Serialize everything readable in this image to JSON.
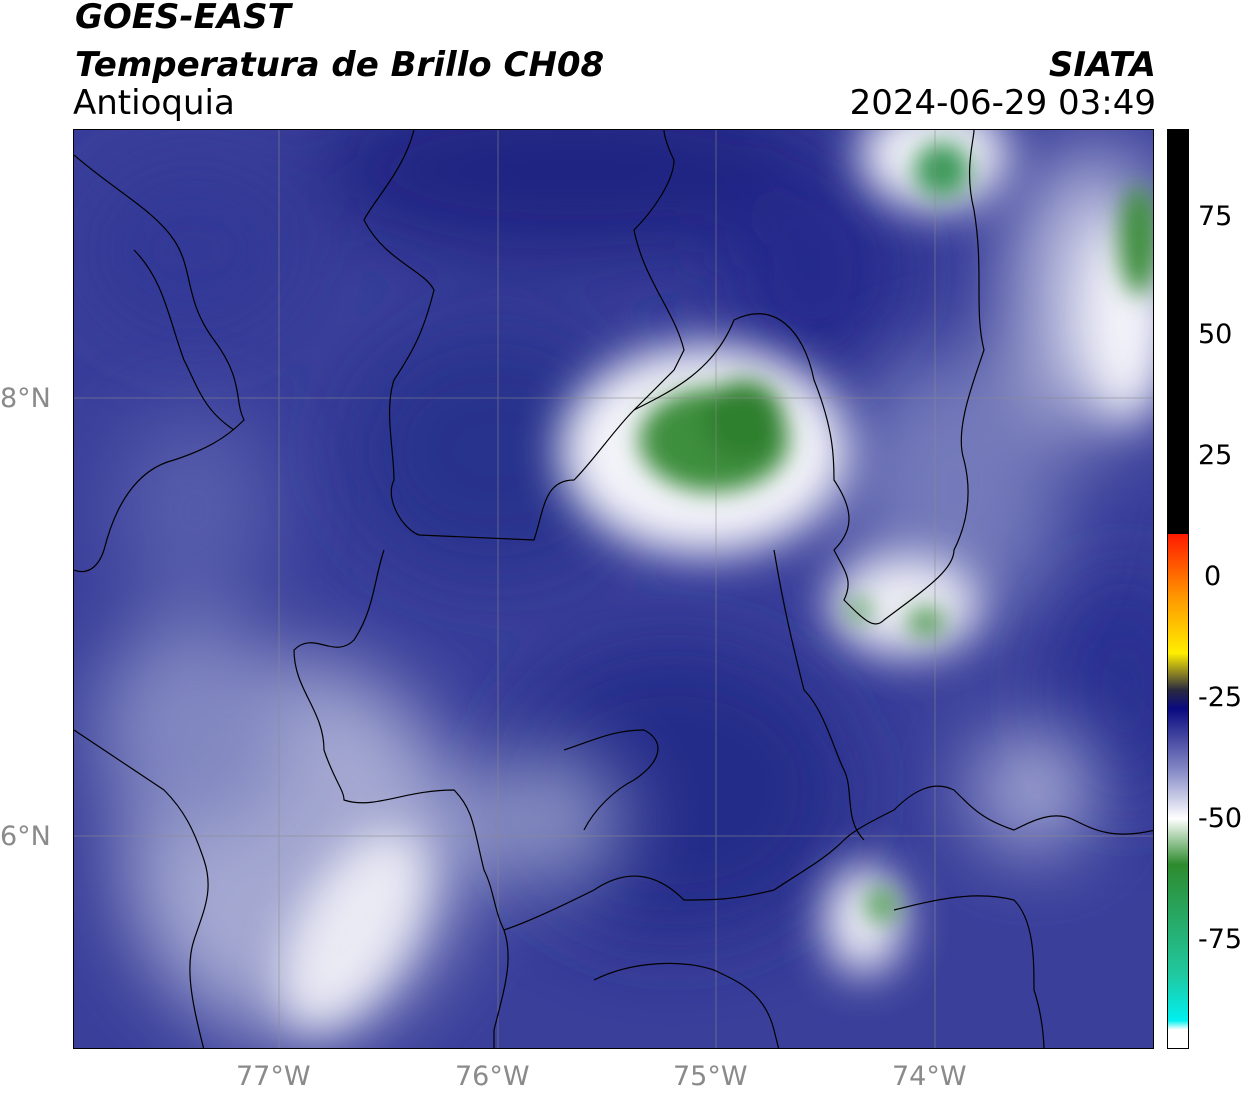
{
  "header": {
    "satellite": "GOES-EAST",
    "product": "Temperatura de Brillo CH08",
    "region": "Antioquia",
    "source": "SIATA",
    "datetime": "2024-06-29 03:49"
  },
  "map": {
    "lat_labels": [
      "8°N",
      "6°N"
    ],
    "lon_labels": [
      "77°W",
      "76°W",
      "75°W",
      "74°W"
    ],
    "gridline_color": "#8a8a8a",
    "background_color": "#3a3f9a",
    "features": [
      "coastline",
      "department-boundaries",
      "municipal-boundaries",
      "graticule"
    ]
  },
  "colorbar": {
    "ticks": [
      "75",
      "50",
      "25",
      "0",
      "-25",
      "-50",
      "-75"
    ],
    "colors": {
      "warm": "#000000",
      "red": "#ff1a00",
      "orange": "#ff9900",
      "yellow": "#ffee00",
      "dark": "#2a2a40",
      "navy": "#0a0a80",
      "blue_gray": "#8a8fc8",
      "white": "#ffffff",
      "green": "#2e8b2e",
      "teal": "#20c8a0",
      "cyan": "#00f0f0"
    }
  }
}
